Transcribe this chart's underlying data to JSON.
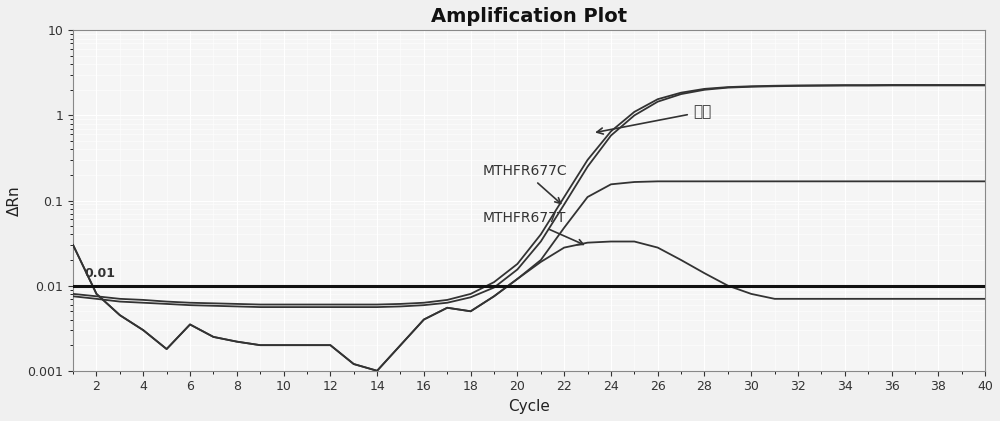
{
  "title": "Amplification Plot",
  "xlabel": "Cycle",
  "ylabel": "ΔRn",
  "xlim": [
    1,
    40
  ],
  "ylim_log": [
    0.001,
    10
  ],
  "threshold": 0.01,
  "threshold_label": "0.01",
  "background_color": "#f0f0f0",
  "plot_bg_color": "#f5f5f5",
  "grid_color": "#ffffff",
  "line_color": "#333333",
  "threshold_color": "#111111",
  "annotations": {
    "neibiao": "内标",
    "mthfr677c": "MTHFR677C",
    "mthfr677t": "MTHFR677T"
  },
  "xticks": [
    2,
    4,
    6,
    8,
    10,
    12,
    14,
    16,
    18,
    20,
    22,
    24,
    26,
    28,
    30,
    32,
    34,
    36,
    38,
    40
  ],
  "yticks_log": [
    0.001,
    0.01,
    0.1,
    1,
    10
  ],
  "x_nei": [
    1,
    2,
    3,
    4,
    5,
    6,
    7,
    8,
    9,
    10,
    11,
    12,
    13,
    14,
    15,
    16,
    17,
    18,
    19,
    20,
    21,
    22,
    23,
    24,
    25,
    26,
    27,
    28,
    29,
    30,
    31,
    32,
    33,
    34,
    35,
    36,
    37,
    38,
    39,
    40
  ],
  "y_nei1": [
    0.008,
    0.0075,
    0.007,
    0.0068,
    0.0065,
    0.0063,
    0.0062,
    0.0061,
    0.006,
    0.006,
    0.006,
    0.006,
    0.006,
    0.006,
    0.0061,
    0.0063,
    0.0068,
    0.008,
    0.011,
    0.018,
    0.04,
    0.11,
    0.3,
    0.65,
    1.1,
    1.55,
    1.85,
    2.05,
    2.15,
    2.2,
    2.23,
    2.25,
    2.26,
    2.27,
    2.27,
    2.28,
    2.28,
    2.28,
    2.28,
    2.28
  ],
  "y_nei2": [
    0.0075,
    0.007,
    0.0065,
    0.0063,
    0.0061,
    0.0059,
    0.0058,
    0.0057,
    0.0056,
    0.0056,
    0.0056,
    0.0056,
    0.0056,
    0.0056,
    0.0057,
    0.0059,
    0.0063,
    0.0073,
    0.0095,
    0.0155,
    0.033,
    0.09,
    0.25,
    0.58,
    1.0,
    1.45,
    1.78,
    2.0,
    2.12,
    2.17,
    2.2,
    2.22,
    2.23,
    2.24,
    2.24,
    2.25,
    2.25,
    2.25,
    2.25,
    2.25
  ],
  "x_shared": [
    1,
    2,
    3,
    4,
    5,
    6,
    7,
    8,
    9,
    10,
    11,
    12,
    13,
    14,
    15,
    16,
    17,
    18,
    19,
    20,
    21,
    22,
    23,
    24,
    25,
    26,
    27,
    28,
    29,
    30,
    31,
    32,
    33,
    34,
    35,
    36,
    37,
    38,
    39,
    40
  ],
  "y_677c": [
    0.03,
    0.008,
    0.0045,
    0.003,
    0.0018,
    0.0035,
    0.0025,
    0.0022,
    0.002,
    0.002,
    0.002,
    0.002,
    0.0012,
    0.001,
    0.002,
    0.004,
    0.0055,
    0.005,
    0.0075,
    0.012,
    0.02,
    0.048,
    0.11,
    0.155,
    0.165,
    0.168,
    0.168,
    0.168,
    0.168,
    0.168,
    0.168,
    0.168,
    0.168,
    0.168,
    0.168,
    0.168,
    0.168,
    0.168,
    0.168,
    0.168
  ],
  "y_677t": [
    0.03,
    0.008,
    0.0045,
    0.003,
    0.0018,
    0.0035,
    0.0025,
    0.0022,
    0.002,
    0.002,
    0.002,
    0.002,
    0.0012,
    0.001,
    0.002,
    0.004,
    0.0055,
    0.005,
    0.0075,
    0.012,
    0.019,
    0.028,
    0.032,
    0.033,
    0.033,
    0.028,
    0.02,
    0.014,
    0.01,
    0.008,
    0.007,
    0.007,
    0.007,
    0.007,
    0.007,
    0.007,
    0.007,
    0.007,
    0.007,
    0.007
  ]
}
